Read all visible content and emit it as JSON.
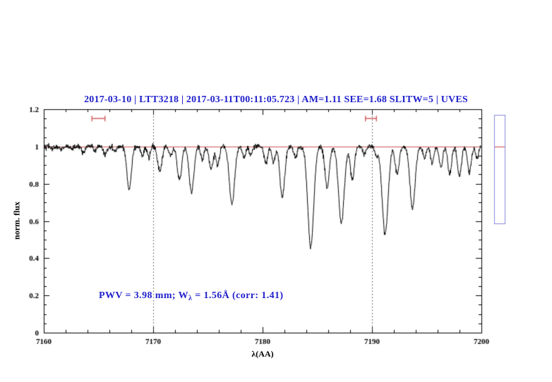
{
  "title": {
    "text": "2017-03-10 | LTT3218 | 2017-03-11T00:11:05.723 | AM=1.11 SEE=1.68 SLITW=5 | UVES",
    "color": "#2222cc"
  },
  "annotation": {
    "prefix": "PWV = 3.98 mm; W",
    "subscript": "λ",
    "suffix": " = 1.56Å (corr: 1.41)",
    "color": "#2222cc"
  },
  "colors": {
    "axis": "#000000",
    "spectrum": "#000000",
    "dotted": "#444444",
    "continuum": "#cc5555",
    "range_marker": "#cc4444",
    "sidebar_border": "#8888dd",
    "sidebar_marker": "#cc4444"
  },
  "chart_data": {
    "type": "line",
    "title": "2017-03-10 | LTT3218 | 2017-03-11T00:11:05.723 | AM=1.11 SEE=1.68 SLITW=5 | UVES",
    "xlabel": "λ(AA)",
    "ylabel": "norm. flux",
    "xlim": [
      7160,
      7200
    ],
    "ylim": [
      0,
      1.2
    ],
    "x_major_ticks": [
      7160,
      7170,
      7180,
      7190,
      7200
    ],
    "x_tick_labels": [
      "7160",
      "7170",
      "7180",
      "7190",
      "7200"
    ],
    "x_minor_step": 2,
    "y_major_ticks": [
      0,
      0.2,
      0.4,
      0.6,
      0.8,
      1.0,
      1.2
    ],
    "y_tick_labels": [
      "0",
      "0.2",
      "0.4",
      "0.6",
      "0.8",
      "1",
      "1.2"
    ],
    "y_minor_step": 0.05,
    "grid": false,
    "legend": "none",
    "continuum_level": 1.0,
    "dotted_vlines": [
      7170,
      7190
    ],
    "noise_sigma": 0.007,
    "sample_step": 0.025,
    "noise_seed": 42,
    "absorption_lines": [
      [
        7160.8,
        0.015,
        0.12
      ],
      [
        7161.6,
        0.02,
        0.12
      ],
      [
        7162.6,
        0.015,
        0.12
      ],
      [
        7163.6,
        0.035,
        0.15
      ],
      [
        7164.7,
        0.025,
        0.12
      ],
      [
        7165.6,
        0.045,
        0.15
      ],
      [
        7166.5,
        0.03,
        0.13
      ],
      [
        7167.8,
        0.23,
        0.2
      ],
      [
        7169.0,
        0.05,
        0.14
      ],
      [
        7169.6,
        0.06,
        0.14
      ],
      [
        7170.6,
        0.13,
        0.2
      ],
      [
        7171.6,
        0.05,
        0.15
      ],
      [
        7172.4,
        0.18,
        0.2
      ],
      [
        7173.5,
        0.245,
        0.22
      ],
      [
        7174.5,
        0.07,
        0.15
      ],
      [
        7175.3,
        0.12,
        0.18
      ],
      [
        7175.9,
        0.1,
        0.16
      ],
      [
        7177.2,
        0.31,
        0.24
      ],
      [
        7178.3,
        0.06,
        0.15
      ],
      [
        7178.9,
        0.05,
        0.14
      ],
      [
        7180.3,
        0.09,
        0.16
      ],
      [
        7181.0,
        0.08,
        0.15
      ],
      [
        7181.8,
        0.27,
        0.22
      ],
      [
        7183.0,
        0.06,
        0.15
      ],
      [
        7184.4,
        0.54,
        0.27
      ],
      [
        7185.9,
        0.22,
        0.2
      ],
      [
        7187.2,
        0.41,
        0.26
      ],
      [
        7188.2,
        0.18,
        0.18
      ],
      [
        7189.3,
        0.04,
        0.14
      ],
      [
        7190.4,
        0.05,
        0.14
      ],
      [
        7191.2,
        0.47,
        0.27
      ],
      [
        7192.3,
        0.15,
        0.18
      ],
      [
        7193.7,
        0.33,
        0.24
      ],
      [
        7194.8,
        0.06,
        0.14
      ],
      [
        7195.5,
        0.09,
        0.15
      ],
      [
        7196.3,
        0.11,
        0.16
      ],
      [
        7197.1,
        0.15,
        0.17
      ],
      [
        7198.0,
        0.16,
        0.18
      ],
      [
        7198.9,
        0.14,
        0.17
      ],
      [
        7199.6,
        0.06,
        0.14
      ]
    ],
    "range_markers": [
      {
        "x1": 7164.4,
        "x2": 7165.6,
        "y": 1.15
      },
      {
        "x1": 7189.4,
        "x2": 7190.4,
        "y": 1.15
      }
    ],
    "side_bar": {
      "flux_top": 1.17,
      "flux_bottom": 0.585,
      "marker_flux": 1.0
    }
  }
}
